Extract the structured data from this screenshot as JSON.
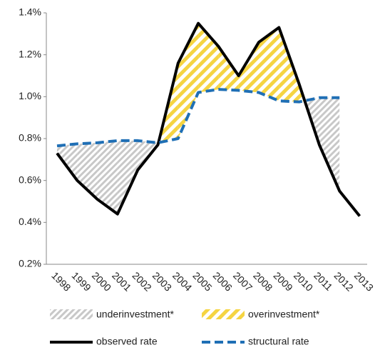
{
  "chart_data": {
    "type": "line",
    "categories": [
      "1998",
      "1999",
      "2000",
      "2001",
      "2002",
      "2003",
      "2004",
      "2005",
      "2006",
      "2007",
      "2008",
      "2009",
      "2010",
      "2011",
      "2012",
      "2013"
    ],
    "series": [
      {
        "name": "observed rate",
        "color": "#000000",
        "dash": false,
        "values": [
          0.73,
          0.6,
          0.51,
          0.44,
          0.65,
          0.77,
          1.16,
          1.35,
          1.24,
          1.1,
          1.26,
          1.33,
          1.06,
          0.77,
          0.55,
          0.43
        ]
      },
      {
        "name": "structural rate",
        "color": "#1f6fb5",
        "dash": true,
        "values": [
          0.765,
          0.775,
          0.78,
          0.79,
          0.79,
          0.78,
          0.8,
          1.02,
          1.035,
          1.03,
          1.02,
          0.98,
          0.975,
          0.995,
          0.995,
          null
        ]
      }
    ],
    "areas": [
      {
        "name": "underinvestment*",
        "color": "#c8c8c8"
      },
      {
        "name": "overinvestment*",
        "color": "#f5d442"
      }
    ],
    "ylim": [
      0.2,
      1.4
    ],
    "yticks": [
      {
        "value": 0.2,
        "label": "0.2%"
      },
      {
        "value": 0.4,
        "label": "0.4%"
      },
      {
        "value": 0.6,
        "label": "0.6%"
      },
      {
        "value": 0.8,
        "label": "0.8%"
      },
      {
        "value": 1.0,
        "label": "1.0%"
      },
      {
        "value": 1.2,
        "label": "1.2%"
      },
      {
        "value": 1.4,
        "label": "1.4%"
      }
    ],
    "grid": false
  }
}
